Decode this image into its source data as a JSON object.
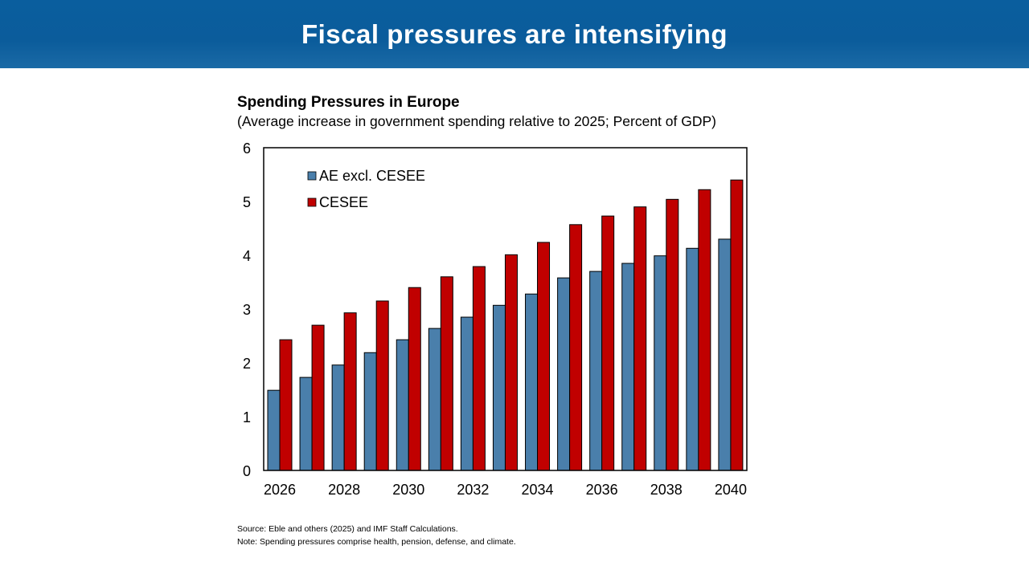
{
  "header": {
    "title": "Fiscal pressures are intensifying"
  },
  "chart_data": {
    "type": "bar",
    "title": "Spending Pressures in Europe",
    "subtitle": "(Average increase in government spending relative to 2025; Percent of GDP)",
    "categories": [
      "2026",
      "2027",
      "2028",
      "2029",
      "2030",
      "2031",
      "2032",
      "2033",
      "2034",
      "2035",
      "2036",
      "2037",
      "2038",
      "2039",
      "2040"
    ],
    "x_tick_labels": [
      "2026",
      "2028",
      "2030",
      "2032",
      "2034",
      "2036",
      "2038",
      "2040"
    ],
    "y_ticks": [
      0,
      1,
      2,
      3,
      4,
      5,
      6
    ],
    "ylim": [
      0,
      6
    ],
    "grid": false,
    "legend_placement": "top-left",
    "series": [
      {
        "name": "AE excl. CESEE",
        "color": "#4a7fab",
        "values": [
          1.49,
          1.73,
          1.96,
          2.19,
          2.43,
          2.64,
          2.85,
          3.07,
          3.28,
          3.58,
          3.7,
          3.85,
          3.99,
          4.13,
          4.3
        ]
      },
      {
        "name": "CESEE",
        "color": "#c00000",
        "values": [
          2.43,
          2.7,
          2.93,
          3.15,
          3.4,
          3.6,
          3.79,
          4.01,
          4.24,
          4.57,
          4.73,
          4.9,
          5.04,
          5.22,
          5.4
        ]
      }
    ]
  },
  "notes": {
    "source": "Source: Eble and others (2025) and IMF Staff Calculations.",
    "note": "Note: Spending pressures comprise health, pension, defense, and climate."
  }
}
